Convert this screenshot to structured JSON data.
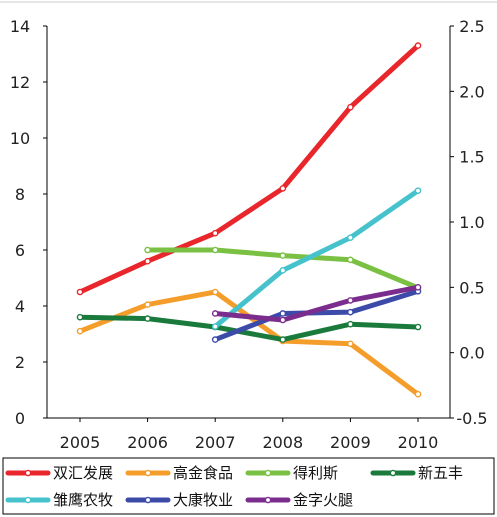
{
  "chart_data": {
    "type": "line",
    "title": "",
    "xlabel": "",
    "ylabel": "",
    "categories": [
      "2005",
      "2006",
      "2007",
      "2008",
      "2009",
      "2010"
    ],
    "y_left": {
      "range": [
        0,
        14
      ],
      "ticks": [
        "0",
        "2",
        "4",
        "6",
        "8",
        "10",
        "12",
        "14"
      ]
    },
    "y_right": {
      "range": [
        -0.5,
        2.5
      ],
      "ticks": [
        "-0.5",
        "0.0",
        "0.5",
        "1.0",
        "1.5",
        "2.0",
        "2.5"
      ]
    },
    "grid": false,
    "legend_position": "bottom",
    "series": [
      {
        "name": "双汇发展",
        "color": "#e8262b",
        "axis": "left",
        "values": [
          4.5,
          5.6,
          6.6,
          8.2,
          11.1,
          13.3
        ]
      },
      {
        "name": "高金食品",
        "color": "#f59d2a",
        "axis": "left",
        "values": [
          3.1,
          4.05,
          4.5,
          2.75,
          2.65,
          0.85
        ]
      },
      {
        "name": "得利斯",
        "color": "#7ac143",
        "axis": "left",
        "values": [
          null,
          6.0,
          6.0,
          5.8,
          5.65,
          4.65
        ]
      },
      {
        "name": "新五丰",
        "color": "#1a7a3c",
        "axis": "left",
        "values": [
          3.6,
          3.55,
          3.25,
          2.8,
          3.35,
          3.25
        ]
      },
      {
        "name": "雏鹰农牧",
        "color": "#46c2cc",
        "axis": "right",
        "values": [
          null,
          null,
          0.2,
          0.63,
          0.88,
          1.24
        ]
      },
      {
        "name": "大康牧业",
        "color": "#3c4aa8",
        "axis": "right",
        "values": [
          null,
          null,
          0.1,
          0.3,
          0.31,
          0.47
        ]
      },
      {
        "name": "金字火腿",
        "color": "#7b2d8e",
        "axis": "right",
        "values": [
          null,
          null,
          0.3,
          0.25,
          0.4,
          0.5
        ]
      }
    ]
  }
}
